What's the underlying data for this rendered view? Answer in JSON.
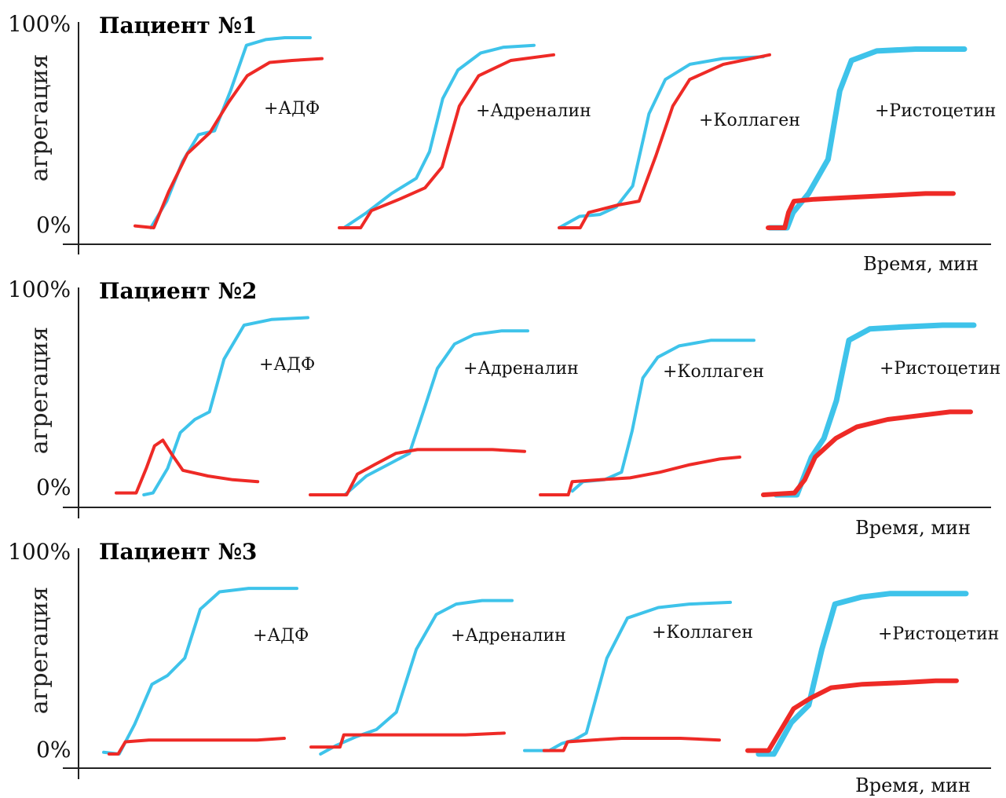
{
  "chart_data": [
    {
      "type": "line",
      "title": "Пациент №1",
      "ylabel": "агрегация",
      "xlabel": "Время, мин",
      "ytick_labels": [
        "100%",
        "0%"
      ],
      "ylim": [
        0,
        100
      ],
      "colors": {
        "normal": "#3ec3ea",
        "patient": "#ee2a26"
      },
      "panels": [
        {
          "label": "+АДФ",
          "series": [
            {
              "color": "#3ec3ea",
              "x": [
                0,
                0.1,
                0.2,
                0.3,
                0.4,
                0.5,
                0.6,
                0.72,
                0.84,
                1.0
              ],
              "values": [
                0,
                14,
                35,
                49,
                51,
                72,
                96,
                99,
                100,
                100
              ]
            },
            {
              "color": "#ee2a26",
              "x": [
                0,
                0.1,
                0.18,
                0.28,
                0.4,
                0.5,
                0.6,
                0.72,
                0.84,
                1.0
              ],
              "values": [
                1,
                0,
                19,
                39,
                50,
                66,
                80,
                87,
                88,
                89
              ]
            }
          ]
        },
        {
          "label": "+Адреналин",
          "series": [
            {
              "color": "#3ec3ea",
              "x": [
                0,
                0.12,
                0.25,
                0.38,
                0.45,
                0.52,
                0.6,
                0.72,
                0.84,
                1.0
              ],
              "values": [
                0,
                8,
                18,
                26,
                40,
                68,
                83,
                92,
                95,
                96
              ]
            },
            {
              "color": "#ee2a26",
              "x": [
                0,
                0.1,
                0.15,
                0.28,
                0.4,
                0.48,
                0.56,
                0.65,
                0.8,
                1.0
              ],
              "values": [
                0,
                0,
                9,
                15,
                21,
                32,
                64,
                80,
                88,
                91
              ]
            }
          ]
        },
        {
          "label": "+Коллаген",
          "series": [
            {
              "color": "#3ec3ea",
              "x": [
                0,
                0.1,
                0.2,
                0.28,
                0.36,
                0.44,
                0.52,
                0.64,
                0.8,
                1.0
              ],
              "values": [
                0,
                6,
                7,
                11,
                22,
                60,
                78,
                86,
                89,
                90
              ]
            },
            {
              "color": "#ee2a26",
              "x": [
                0,
                0.1,
                0.14,
                0.28,
                0.38,
                0.46,
                0.54,
                0.62,
                0.78,
                1.0
              ],
              "values": [
                0,
                0,
                8,
                12,
                14,
                38,
                64,
                78,
                86,
                91
              ]
            }
          ]
        },
        {
          "label": "+Ристоцетин",
          "series": [
            {
              "color": "#3ec3ea",
              "x": [
                0,
                0.09,
                0.12,
                0.2,
                0.3,
                0.36,
                0.42,
                0.55,
                0.75,
                1.0
              ],
              "values": [
                0,
                0,
                8,
                18,
                36,
                72,
                88,
                93,
                94,
                94
              ]
            },
            {
              "color": "#ee2a26",
              "x": [
                0,
                0.09,
                0.11,
                0.14,
                0.25,
                0.45,
                0.65,
                0.85,
                1.0
              ],
              "values": [
                0,
                0,
                8,
                14,
                15,
                16,
                17,
                18,
                18
              ]
            }
          ]
        }
      ]
    },
    {
      "type": "line",
      "title": "Пациент №2",
      "ylabel": "агрегация",
      "xlabel": "Время, мин",
      "ytick_labels": [
        "100%",
        "0%"
      ],
      "ylim": [
        0,
        100
      ],
      "colors": {
        "normal": "#3ec3ea",
        "patient": "#ee2a26"
      },
      "panels": [
        {
          "label": "+АДФ",
          "series": [
            {
              "color": "#3ec3ea",
              "x": [
                0.1,
                0.15,
                0.23,
                0.3,
                0.38,
                0.46,
                0.54,
                0.65,
                0.8,
                1.0
              ],
              "values": [
                0,
                1,
                14,
                33,
                40,
                44,
                72,
                90,
                93,
                94
              ]
            },
            {
              "color": "#ee2a26",
              "x": [
                0,
                0.12,
                0.18,
                0.23,
                0.28,
                0.33,
                0.4,
                0.55,
                0.7,
                0.85
              ],
              "values": [
                1,
                1,
                14,
                26,
                29,
                22,
                13,
                10,
                8,
                7
              ]
            }
          ]
        },
        {
          "label": "+Адреналин",
          "series": [
            {
              "color": "#3ec3ea",
              "x": [
                0.15,
                0.25,
                0.35,
                0.45,
                0.52,
                0.58,
                0.66,
                0.75,
                0.88,
                1.0
              ],
              "values": [
                0,
                10,
                16,
                22,
                46,
                67,
                80,
                85,
                87,
                87
              ]
            },
            {
              "color": "#ee2a26",
              "x": [
                0,
                0.17,
                0.22,
                0.3,
                0.4,
                0.5,
                0.65,
                0.85,
                1.0
              ],
              "values": [
                0,
                0,
                11,
                16,
                22,
                24,
                24,
                24,
                23
              ]
            }
          ]
        },
        {
          "label": "+Коллаген",
          "series": [
            {
              "color": "#3ec3ea",
              "x": [
                0.15,
                0.2,
                0.3,
                0.38,
                0.43,
                0.48,
                0.55,
                0.65,
                0.8,
                1.0
              ],
              "values": [
                2,
                7,
                8,
                12,
                34,
                62,
                73,
                79,
                82,
                82
              ]
            },
            {
              "color": "#ee2a26",
              "x": [
                0,
                0.14,
                0.16,
                0.3,
                0.45,
                0.6,
                0.75,
                0.9,
                1.0
              ],
              "values": [
                0,
                0,
                7,
                8,
                9,
                12,
                16,
                19,
                20
              ]
            }
          ]
        },
        {
          "label": "+Ристоцетин",
          "series": [
            {
              "color": "#3ec3ea",
              "x": [
                0.05,
                0.15,
                0.22,
                0.28,
                0.34,
                0.4,
                0.5,
                0.65,
                0.85,
                1.0
              ],
              "values": [
                0,
                0,
                20,
                30,
                50,
                82,
                88,
                89,
                90,
                90
              ]
            },
            {
              "color": "#ee2a26",
              "x": [
                0,
                0.15,
                0.2,
                0.25,
                0.35,
                0.45,
                0.6,
                0.75,
                0.9,
                1.0
              ],
              "values": [
                0,
                1,
                8,
                20,
                30,
                36,
                40,
                42,
                44,
                44
              ]
            }
          ]
        }
      ]
    },
    {
      "type": "line",
      "title": "Пациент №3",
      "ylabel": "агрегация",
      "xlabel": "Время, мин",
      "ytick_labels": [
        "100%",
        "0%"
      ],
      "ylim": [
        0,
        100
      ],
      "colors": {
        "normal": "#3ec3ea",
        "patient": "#ee2a26"
      },
      "panels": [
        {
          "label": "+АДФ",
          "series": [
            {
              "color": "#3ec3ea",
              "x": [
                0,
                0.08,
                0.16,
                0.25,
                0.33,
                0.42,
                0.5,
                0.6,
                0.75,
                1.0
              ],
              "values": [
                1,
                0,
                17,
                40,
                45,
                55,
                83,
                93,
                95,
                95
              ]
            },
            {
              "color": "#ee2a26",
              "x": [
                0.03,
                0.08,
                0.12,
                0.25,
                0.45,
                0.65,
                0.85,
                1.0
              ],
              "values": [
                0,
                0,
                7,
                8,
                8,
                8,
                8,
                9
              ]
            }
          ]
        },
        {
          "label": "+Адреналин",
          "series": [
            {
              "color": "#3ec3ea",
              "x": [
                0.04,
                0.12,
                0.22,
                0.32,
                0.42,
                0.52,
                0.62,
                0.72,
                0.85,
                1.0
              ],
              "values": [
                0,
                5,
                10,
                14,
                24,
                60,
                80,
                86,
                88,
                88
              ]
            },
            {
              "color": "#ee2a26",
              "x": [
                0,
                0.15,
                0.17,
                0.3,
                0.45,
                0.6,
                0.8,
                1.0
              ],
              "values": [
                4,
                4,
                11,
                11,
                11,
                11,
                11,
                12
              ]
            }
          ]
        },
        {
          "label": "+Коллаген",
          "series": [
            {
              "color": "#3ec3ea",
              "x": [
                0,
                0.12,
                0.18,
                0.24,
                0.3,
                0.4,
                0.5,
                0.65,
                0.8,
                1.0
              ],
              "values": [
                2,
                2,
                6,
                8,
                12,
                55,
                78,
                84,
                86,
                87
              ]
            },
            {
              "color": "#ee2a26",
              "x": [
                0.1,
                0.2,
                0.22,
                0.35,
                0.5,
                0.65,
                0.8,
                1.0
              ],
              "values": [
                2,
                2,
                7,
                8,
                9,
                9,
                9,
                8
              ]
            }
          ]
        },
        {
          "label": "+Ристоцетин",
          "series": [
            {
              "color": "#3ec3ea",
              "x": [
                0.05,
                0.12,
                0.2,
                0.28,
                0.34,
                0.4,
                0.52,
                0.65,
                0.82,
                1.0
              ],
              "values": [
                0,
                0,
                18,
                28,
                60,
                86,
                90,
                92,
                92,
                92
              ]
            },
            {
              "color": "#ee2a26",
              "x": [
                0,
                0.1,
                0.16,
                0.22,
                0.3,
                0.4,
                0.55,
                0.75,
                0.9,
                1.0
              ],
              "values": [
                2,
                2,
                14,
                26,
                32,
                38,
                40,
                41,
                42,
                42
              ]
            }
          ]
        }
      ]
    }
  ]
}
